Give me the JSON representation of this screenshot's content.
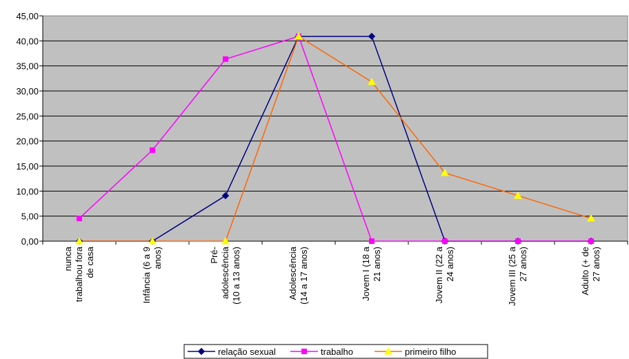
{
  "chart_data": {
    "type": "line",
    "categories": [
      [
        "nunca",
        "trabalhou fora",
        "de casa"
      ],
      [
        "Infância (6 a 9",
        "anos)"
      ],
      [
        "Pré-",
        "adolescência",
        "(10 a 13 anos)"
      ],
      [
        "Adolescência",
        "(14 a 17 anos)"
      ],
      [
        "Jovem I (18 a",
        "21 anos)"
      ],
      [
        "Jovem II (22 a",
        "24 anos)"
      ],
      [
        "Jovem III (25 a",
        "27 anos)"
      ],
      [
        "Adulto (+ de",
        "27 anos)"
      ]
    ],
    "yticks": [
      "0,00",
      "5,00",
      "10,00",
      "15,00",
      "20,00",
      "25,00",
      "30,00",
      "35,00",
      "40,00",
      "45,00"
    ],
    "ylim": [
      0,
      45
    ],
    "grid": true,
    "plot_background": "#c0c0c0",
    "legend_position": "bottom",
    "series": [
      {
        "name": "relação sexual",
        "color": "#000080",
        "marker": "diamond",
        "values": [
          0,
          0,
          9.09,
          40.91,
          40.91,
          0,
          0,
          0
        ]
      },
      {
        "name": "trabalho",
        "color": "#ff00ff",
        "marker": "square",
        "values": [
          4.55,
          18.18,
          36.36,
          40.91,
          0,
          0,
          0,
          0
        ]
      },
      {
        "name": "primeiro filho",
        "color": "#ff6600",
        "marker_color": "#ffff00",
        "marker": "triangle",
        "values": [
          0,
          0,
          0,
          40.91,
          31.82,
          13.64,
          9.09,
          4.55
        ]
      }
    ]
  }
}
